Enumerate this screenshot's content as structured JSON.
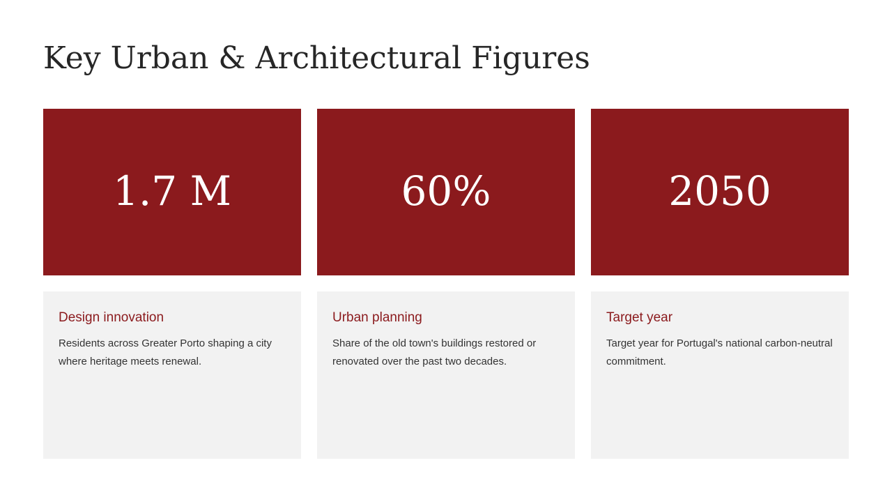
{
  "slide": {
    "title": "Key Urban & Architectural Figures"
  },
  "stats": [
    {
      "value": "1.7 M",
      "heading": "Design innovation",
      "description": "Residents across Greater Porto shaping a city where heritage meets renewal."
    },
    {
      "value": "60%",
      "heading": "Urban planning",
      "description": "Share of the old town's buildings restored or renovated over the past two decades."
    },
    {
      "value": "2050",
      "heading": "Target year",
      "description": "Target year for Portugal's national carbon-neutral commitment."
    }
  ],
  "colors": {
    "accent": "#8b1a1d",
    "card_background": "#f2f2f2",
    "title_text": "#262626",
    "body_text": "#333333"
  }
}
